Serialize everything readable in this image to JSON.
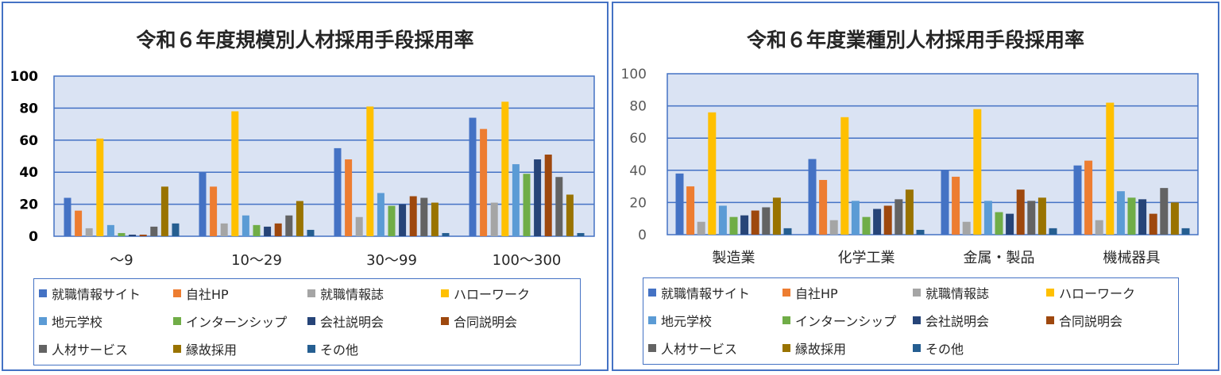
{
  "series_names": [
    "就職情報サイト",
    "自社HP",
    "就職情報誌",
    "ハローワーク",
    "地元学校",
    "インターンシップ",
    "会社説明会",
    "合同説明会",
    "人材サービス",
    "縁故採用",
    "その他"
  ],
  "series_colors": [
    "#4472C4",
    "#ED7D31",
    "#A5A5A5",
    "#FFC000",
    "#5B9BD5",
    "#70AD47",
    "#264478",
    "#9E480E",
    "#636363",
    "#997300",
    "#255E91"
  ],
  "plot_bg": "#DAE3F3",
  "frame_color": "#4472C4",
  "chart_data": [
    {
      "type": "bar",
      "title": "令和６年度規模別人材採用手段採用率",
      "xlabel": "",
      "ylabel": "",
      "ylim": [
        0,
        100
      ],
      "yticks": [
        "0",
        "20",
        "40",
        "60",
        "80",
        "100"
      ],
      "grid": true,
      "legend": "bottom",
      "categories": [
        "～9",
        "10～29",
        "30～99",
        "100～300"
      ],
      "series": [
        {
          "name": "就職情報サイト",
          "values": [
            24,
            40,
            55,
            74
          ]
        },
        {
          "name": "自社HP",
          "values": [
            16,
            31,
            48,
            67
          ]
        },
        {
          "name": "就職情報誌",
          "values": [
            5,
            8,
            12,
            21
          ]
        },
        {
          "name": "ハローワーク",
          "values": [
            61,
            78,
            81,
            84
          ]
        },
        {
          "name": "地元学校",
          "values": [
            7,
            13,
            27,
            45
          ]
        },
        {
          "name": "インターンシップ",
          "values": [
            2,
            7,
            19,
            39
          ]
        },
        {
          "name": "会社説明会",
          "values": [
            1,
            6,
            20,
            48
          ]
        },
        {
          "name": "合同説明会",
          "values": [
            1,
            8,
            25,
            51
          ]
        },
        {
          "name": "人材サービス",
          "values": [
            6,
            13,
            24,
            37
          ]
        },
        {
          "name": "縁故採用",
          "values": [
            31,
            22,
            21,
            26
          ]
        },
        {
          "name": "その他",
          "values": [
            8,
            4,
            2,
            2
          ]
        }
      ]
    },
    {
      "type": "bar",
      "title": "令和６年度業種別人材採用手段採用率",
      "xlabel": "",
      "ylabel": "",
      "ylim": [
        0,
        100
      ],
      "yticks": [
        "0",
        "20",
        "40",
        "60",
        "80",
        "100"
      ],
      "grid": true,
      "legend": "bottom",
      "categories": [
        "製造業",
        "化学工業",
        "金属・製品",
        "機械器具"
      ],
      "series": [
        {
          "name": "就職情報サイト",
          "values": [
            38,
            47,
            40,
            43
          ]
        },
        {
          "name": "自社HP",
          "values": [
            30,
            34,
            36,
            46
          ]
        },
        {
          "name": "就職情報誌",
          "values": [
            8,
            9,
            8,
            9
          ]
        },
        {
          "name": "ハローワーク",
          "values": [
            76,
            73,
            78,
            82
          ]
        },
        {
          "name": "地元学校",
          "values": [
            18,
            21,
            21,
            27
          ]
        },
        {
          "name": "インターンシップ",
          "values": [
            11,
            11,
            14,
            23
          ]
        },
        {
          "name": "会社説明会",
          "values": [
            12,
            16,
            13,
            22
          ]
        },
        {
          "name": "合同説明会",
          "values": [
            15,
            18,
            28,
            13
          ]
        },
        {
          "name": "人材サービス",
          "values": [
            17,
            22,
            21,
            29
          ]
        },
        {
          "name": "縁故採用",
          "values": [
            23,
            28,
            23,
            20
          ]
        },
        {
          "name": "その他",
          "values": [
            4,
            3,
            4,
            4
          ]
        }
      ]
    }
  ]
}
